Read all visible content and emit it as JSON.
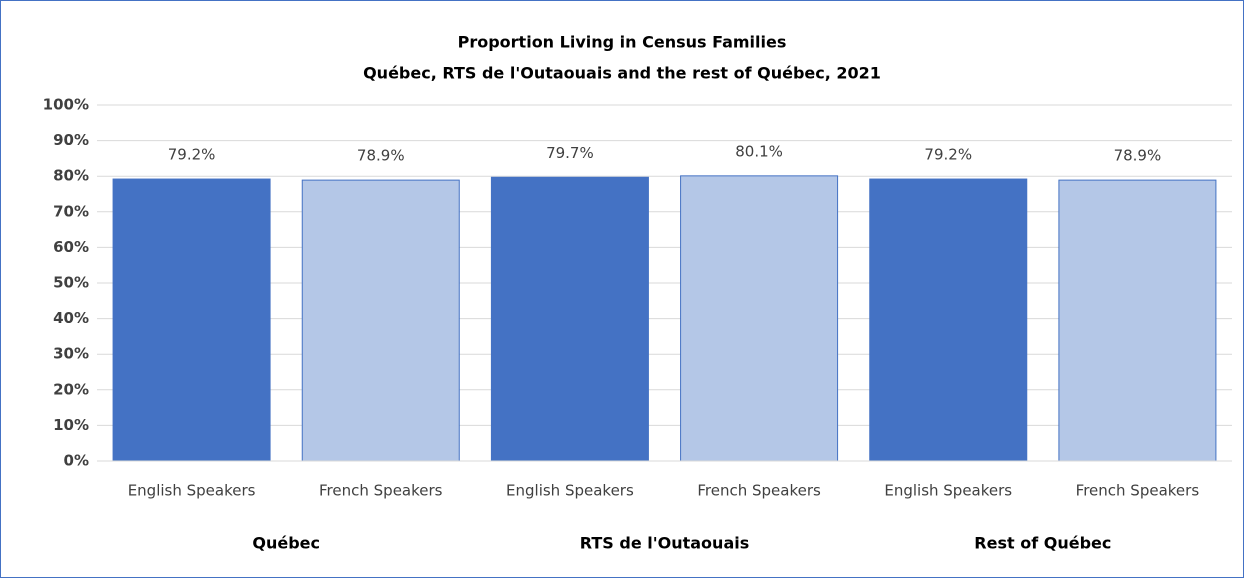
{
  "chart_data": {
    "type": "bar",
    "title": "Proportion Living in Census Families",
    "subtitle": "Québec, RTS de l'Outaouais and the rest of Québec, 2021",
    "categories": [
      "English Speakers",
      "French Speakers",
      "English Speakers",
      "French Speakers",
      "English Speakers",
      "French Speakers"
    ],
    "groups": [
      "Québec",
      "RTS de l'Outaouais",
      "Rest of Québec"
    ],
    "values": [
      79.2,
      78.9,
      79.7,
      80.1,
      79.2,
      78.9
    ],
    "value_labels": [
      "79.2%",
      "78.9%",
      "79.7%",
      "80.1%",
      "79.2%",
      "78.9%"
    ],
    "colors": [
      "#4472c4",
      "#b4c7e7",
      "#4472c4",
      "#b4c7e7",
      "#4472c4",
      "#b4c7e7"
    ],
    "ylim": [
      0,
      100
    ],
    "yticks": [
      {
        "value": 0,
        "label": "0%"
      },
      {
        "value": 10,
        "label": "10%"
      },
      {
        "value": 20,
        "label": "20%"
      },
      {
        "value": 30,
        "label": "30%"
      },
      {
        "value": 40,
        "label": "40%"
      },
      {
        "value": 50,
        "label": "50%"
      },
      {
        "value": 60,
        "label": "60%"
      },
      {
        "value": 70,
        "label": "70%"
      },
      {
        "value": 80,
        "label": "80%"
      },
      {
        "value": 90,
        "label": "90%"
      },
      {
        "value": 100,
        "label": "100%"
      }
    ],
    "grid": true
  }
}
